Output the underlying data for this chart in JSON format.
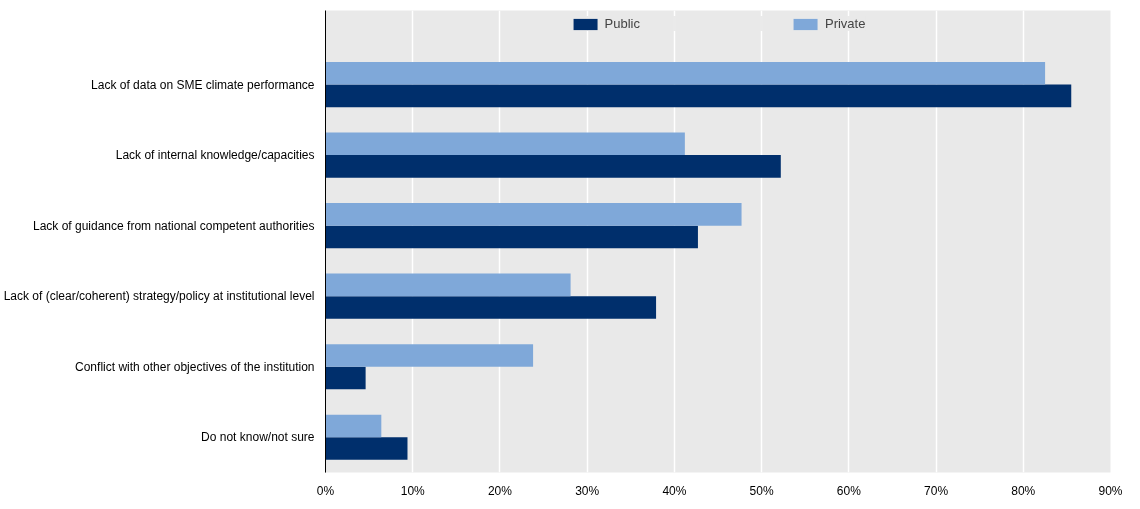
{
  "chart_data": {
    "type": "bar",
    "orientation": "horizontal",
    "categories": [
      "Lack of data on SME climate performance",
      "Lack of internal knowledge/capacities",
      "Lack of guidance from national competent authorities",
      "Lack of (clear/coherent) strategy/policy at institutional level",
      "Conflict with other objectives of the institution",
      "Do not know/not sure"
    ],
    "series": [
      {
        "name": "Public",
        "color": "#002f6c",
        "values": [
          85.5,
          52.2,
          42.7,
          37.9,
          4.6,
          9.4
        ]
      },
      {
        "name": "Private",
        "color": "#7fa8d9",
        "values": [
          82.5,
          41.2,
          47.7,
          28.1,
          23.8,
          6.4
        ]
      }
    ],
    "xlim": [
      0,
      90
    ],
    "xticks": [
      {
        "value": 0,
        "label": "0%"
      },
      {
        "value": 10,
        "label": "10%"
      },
      {
        "value": 20,
        "label": "20%"
      },
      {
        "value": 30,
        "label": "30%"
      },
      {
        "value": 40,
        "label": "40%"
      },
      {
        "value": 50,
        "label": "50%"
      },
      {
        "value": 60,
        "label": "60%"
      },
      {
        "value": 70,
        "label": "70%"
      },
      {
        "value": 80,
        "label": "80%"
      },
      {
        "value": 90,
        "label": "90%"
      }
    ],
    "grid": "x",
    "legend": "top"
  }
}
